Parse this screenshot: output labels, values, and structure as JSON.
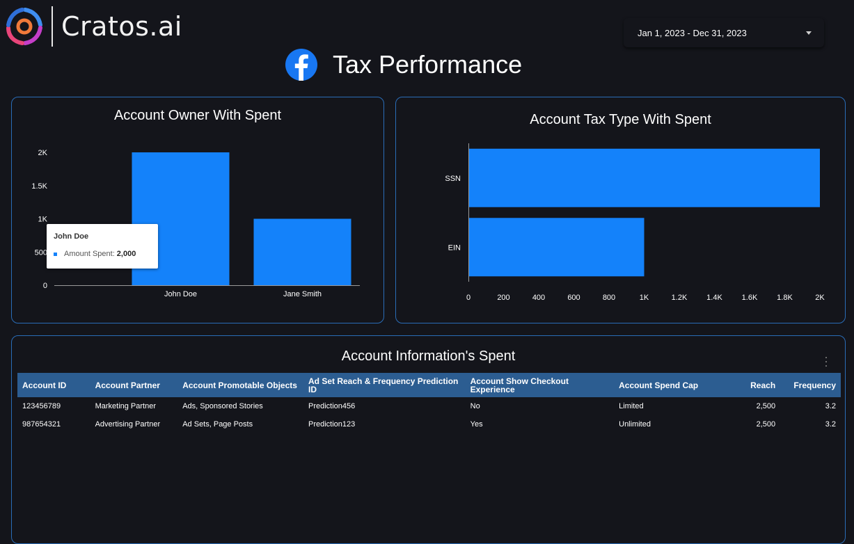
{
  "brand": {
    "name": "Cratos.ai"
  },
  "date_range": {
    "label": "Jan 1, 2023 - Dec 31, 2023"
  },
  "page": {
    "title": "Tax Performance"
  },
  "colors": {
    "accent": "#1482fa",
    "card_border": "#2a6db8",
    "table_header": "#2c5d91",
    "background": "#14151b"
  },
  "owner_card": {
    "title": "Account Owner With Spent"
  },
  "tax_card": {
    "title": "Account Tax Type With Spent"
  },
  "table_card": {
    "title": "Account Information's Spent"
  },
  "tooltip": {
    "title": "John Doe",
    "metric": "Amount Spent:",
    "value": "2,000"
  },
  "table": {
    "columns": [
      "Account ID",
      "Account Partner",
      "Account Promotable Objects",
      "Ad Set Reach & Frequency Prediction ID",
      "Account Show Checkout Experience",
      "Account Spend Cap",
      "Reach",
      "Frequency"
    ],
    "rows": [
      [
        "123456789",
        "Marketing Partner",
        "Ads, Sponsored Stories",
        "Prediction456",
        "No",
        "Limited",
        "2,500",
        "3.2"
      ],
      [
        "987654321",
        "Advertising Partner",
        "Ad Sets, Page Posts",
        "Prediction123",
        "Yes",
        "Unlimited",
        "2,500",
        "3.2"
      ]
    ]
  },
  "chart_data": [
    {
      "type": "bar",
      "title": "Account Owner With Spent",
      "categories": [
        "John Doe",
        "Jane Smith"
      ],
      "series": [
        {
          "name": "Amount Spent",
          "values": [
            2000,
            1000
          ]
        }
      ],
      "ylim": [
        0,
        2000
      ],
      "yticks": [
        0,
        500,
        1000,
        1500,
        2000
      ],
      "ytick_labels": [
        "0",
        "500",
        "1K",
        "1.5K",
        "2K"
      ],
      "grid": false
    },
    {
      "type": "bar",
      "orientation": "horizontal",
      "title": "Account Tax Type With Spent",
      "categories": [
        "SSN",
        "EIN"
      ],
      "series": [
        {
          "values": [
            2000,
            1000
          ]
        }
      ],
      "xlim": [
        0,
        2000
      ],
      "xticks": [
        0,
        200,
        400,
        600,
        800,
        1000,
        1200,
        1400,
        1600,
        1800,
        2000
      ],
      "xtick_labels": [
        "0",
        "200",
        "400",
        "600",
        "800",
        "1K",
        "1.2K",
        "1.4K",
        "1.6K",
        "1.8K",
        "2K"
      ],
      "grid": false
    }
  ]
}
